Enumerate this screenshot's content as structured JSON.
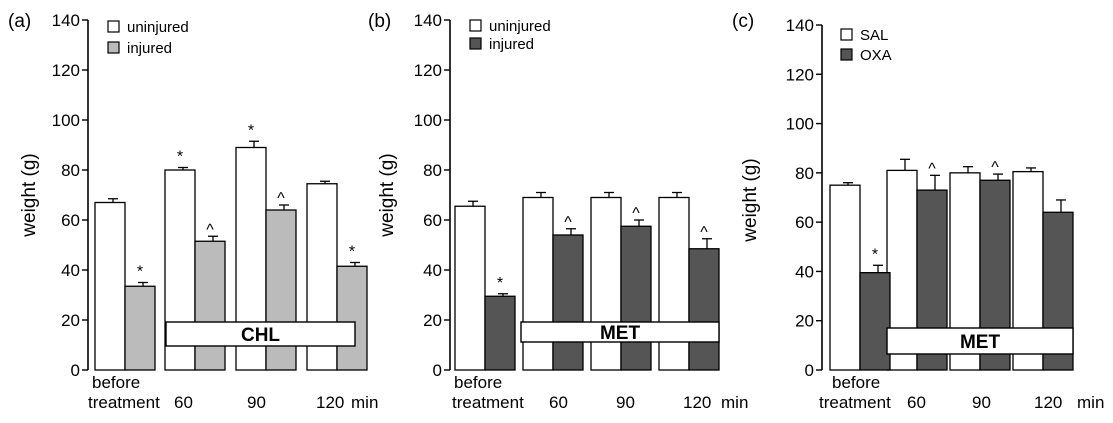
{
  "chart_data": [
    {
      "panel_label": "(a)",
      "type": "bar",
      "ylabel": "weight (g)",
      "ylim": [
        0,
        140
      ],
      "yticks": [
        0,
        20,
        40,
        60,
        80,
        100,
        120,
        140
      ],
      "categories": [
        [
          "before",
          "treatment"
        ],
        [
          "60"
        ],
        [
          "90"
        ],
        [
          "120"
        ]
      ],
      "x_unit": "min",
      "legend_position": "top-left",
      "treatment_box": "CHL",
      "colors": {
        "first": "#ffffff",
        "second": "#bbbbbb"
      },
      "series": [
        {
          "name": "uninjured",
          "values": [
            67,
            80,
            89,
            74.5
          ],
          "errors": [
            1.5,
            1,
            2.5,
            1
          ],
          "marks": [
            "",
            "*",
            "*",
            ""
          ]
        },
        {
          "name": "injured",
          "values": [
            33.5,
            51.5,
            64,
            41.5
          ],
          "errors": [
            1.5,
            2,
            2,
            1.5
          ],
          "marks": [
            "*",
            "^",
            "^",
            "*"
          ]
        }
      ]
    },
    {
      "panel_label": "(b)",
      "type": "bar",
      "ylabel": "weight (g)",
      "ylim": [
        0,
        140
      ],
      "yticks": [
        0,
        20,
        40,
        60,
        80,
        100,
        120,
        140
      ],
      "categories": [
        [
          "before",
          "treatment"
        ],
        [
          "60"
        ],
        [
          "90"
        ],
        [
          "120"
        ]
      ],
      "x_unit": "min",
      "legend_position": "top-left",
      "treatment_box": "MET",
      "colors": {
        "first": "#ffffff",
        "second": "#555555"
      },
      "series": [
        {
          "name": "uninjured",
          "values": [
            65.5,
            69,
            69,
            69
          ],
          "errors": [
            2,
            2,
            2,
            2
          ],
          "marks": [
            "",
            "",
            "",
            ""
          ]
        },
        {
          "name": "injured",
          "values": [
            29.5,
            54,
            57.5,
            48.5
          ],
          "errors": [
            1,
            2.5,
            2.5,
            4
          ],
          "marks": [
            "*",
            "^",
            "^",
            "^"
          ]
        }
      ]
    },
    {
      "panel_label": "(c)",
      "type": "bar",
      "ylabel": "weight (g)",
      "ylim": [
        0,
        140
      ],
      "yticks": [
        0,
        20,
        40,
        60,
        80,
        100,
        120,
        140
      ],
      "categories": [
        [
          "before",
          "treatment"
        ],
        [
          "60"
        ],
        [
          "90"
        ],
        [
          "120"
        ]
      ],
      "x_unit": "min",
      "legend_position": "top-left",
      "treatment_box": "MET",
      "colors": {
        "first": "#ffffff",
        "second": "#555555"
      },
      "series": [
        {
          "name": "SAL",
          "values": [
            75,
            81,
            80,
            80.5
          ],
          "errors": [
            1,
            4.5,
            2.5,
            1.5
          ],
          "marks": [
            "",
            "",
            "",
            ""
          ]
        },
        {
          "name": "OXA",
          "values": [
            39.5,
            73,
            77,
            64
          ],
          "errors": [
            3,
            6,
            2.5,
            5
          ],
          "marks": [
            "*",
            "^",
            "^",
            ""
          ]
        }
      ]
    }
  ]
}
